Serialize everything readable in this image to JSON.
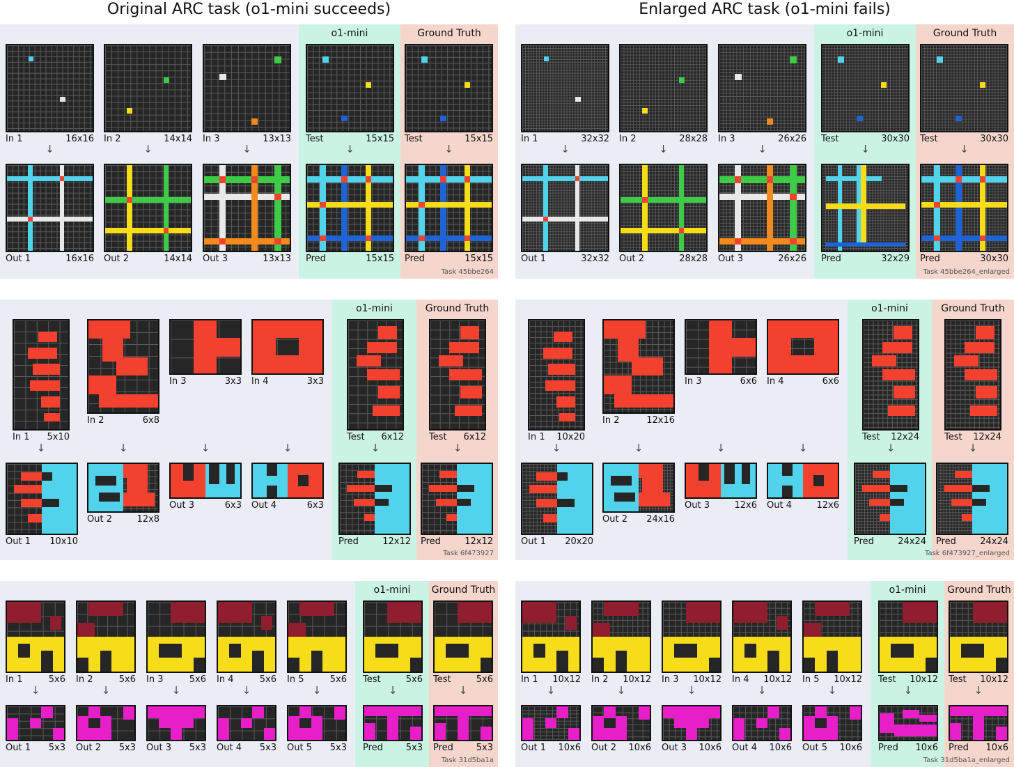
{
  "titles": {
    "left": "Original ARC task (o1-mini succeeds)",
    "right": "Enlarged ARC task (o1-mini fails)"
  },
  "colors": {
    "black": "#262626",
    "cyan": "#52d3ec",
    "white": "#e8e8e8",
    "green": "#3ecb48",
    "yellow": "#f7dc1a",
    "orange": "#f28a1e",
    "red": "#f3412f",
    "blue": "#1f64d4",
    "maroon": "#8f1e2f",
    "magenta": "#e61fc8"
  },
  "panels": [
    {
      "id": "p1",
      "o1_label": "o1-mini",
      "gt_label": "Ground Truth",
      "task_label": "Task 45bbe264",
      "input_tags": [
        "In 1",
        "In 2",
        "In 3",
        "Test",
        "Test"
      ],
      "input_sizes": [
        "16x16",
        "14x14",
        "13x13",
        "15x15",
        "15x15"
      ],
      "output_tags": [
        "Out 1",
        "Out 2",
        "Out 3",
        "Pred",
        "Pred"
      ],
      "output_sizes": [
        "16x16",
        "14x14",
        "13x13",
        "15x15",
        "15x15"
      ]
    },
    {
      "id": "p2",
      "o1_label": "o1-mini",
      "gt_label": "Ground Truth",
      "task_label": "Task 45bbe264_enlarged",
      "input_tags": [
        "In 1",
        "In 2",
        "In 3",
        "Test",
        "Test"
      ],
      "input_sizes": [
        "32x32",
        "28x28",
        "26x26",
        "30x30",
        "30x30"
      ],
      "output_tags": [
        "Out 1",
        "Out 2",
        "Out 3",
        "Pred",
        "Pred"
      ],
      "output_sizes": [
        "32x32",
        "28x28",
        "26x26",
        "32x29",
        "30x30"
      ]
    },
    {
      "id": "p3",
      "o1_label": "o1-mini",
      "gt_label": "Ground Truth",
      "task_label": "Task 6f473927",
      "input_tags": [
        "In 1",
        "In 2",
        "In 3",
        "In 4",
        "Test",
        "Test"
      ],
      "input_sizes": [
        "5x10",
        "6x8",
        "3x3",
        "3x3",
        "6x12",
        "6x12"
      ],
      "output_tags": [
        "Out 1",
        "Out 2",
        "Out 3",
        "Out 4",
        "Pred",
        "Pred"
      ],
      "output_sizes": [
        "10x10",
        "12x8",
        "6x3",
        "6x3",
        "12x12",
        "12x12"
      ]
    },
    {
      "id": "p4",
      "o1_label": "o1-mini",
      "gt_label": "Ground Truth",
      "task_label": "Task 6f473927_enlarged",
      "input_tags": [
        "In 1",
        "In 2",
        "In 3",
        "In 4",
        "Test",
        "Test"
      ],
      "input_sizes": [
        "10x20",
        "12x16",
        "6x6",
        "6x6",
        "12x24",
        "12x24"
      ],
      "output_tags": [
        "Out 1",
        "Out 2",
        "Out 3",
        "Out 4",
        "Pred",
        "Pred"
      ],
      "output_sizes": [
        "20x20",
        "24x16",
        "12x6",
        "12x6",
        "24x24",
        "24x24"
      ]
    },
    {
      "id": "p5",
      "o1_label": "o1-mini",
      "gt_label": "Ground Truth",
      "task_label": "Task 31d5ba1a",
      "input_tags": [
        "In 1",
        "In 2",
        "In 3",
        "In 4",
        "In 5",
        "Test",
        "Test"
      ],
      "input_sizes": [
        "5x6",
        "5x6",
        "5x6",
        "5x6",
        "5x6",
        "5x6",
        "5x6"
      ],
      "output_tags": [
        "Out 1",
        "Out 2",
        "Out 3",
        "Out 4",
        "Out 5",
        "Pred",
        "Pred"
      ],
      "output_sizes": [
        "5x3",
        "5x3",
        "5x3",
        "5x3",
        "5x3",
        "5x3",
        "5x3"
      ]
    },
    {
      "id": "p6",
      "o1_label": "o1-mini",
      "gt_label": "Ground Truth",
      "task_label": "Task 31d5ba1a_enlarged",
      "input_tags": [
        "In 1",
        "In 2",
        "In 3",
        "In 4",
        "In 5",
        "Test",
        "Test"
      ],
      "input_sizes": [
        "10x12",
        "10x12",
        "10x12",
        "10x12",
        "10x12",
        "10x12",
        "10x12"
      ],
      "output_tags": [
        "Out 1",
        "Out 2",
        "Out 3",
        "Out 4",
        "Out 5",
        "Pred",
        "Pred"
      ],
      "output_sizes": [
        "10x6",
        "10x6",
        "10x6",
        "10x6",
        "10x6",
        "10x6",
        "10x6"
      ]
    }
  ]
}
